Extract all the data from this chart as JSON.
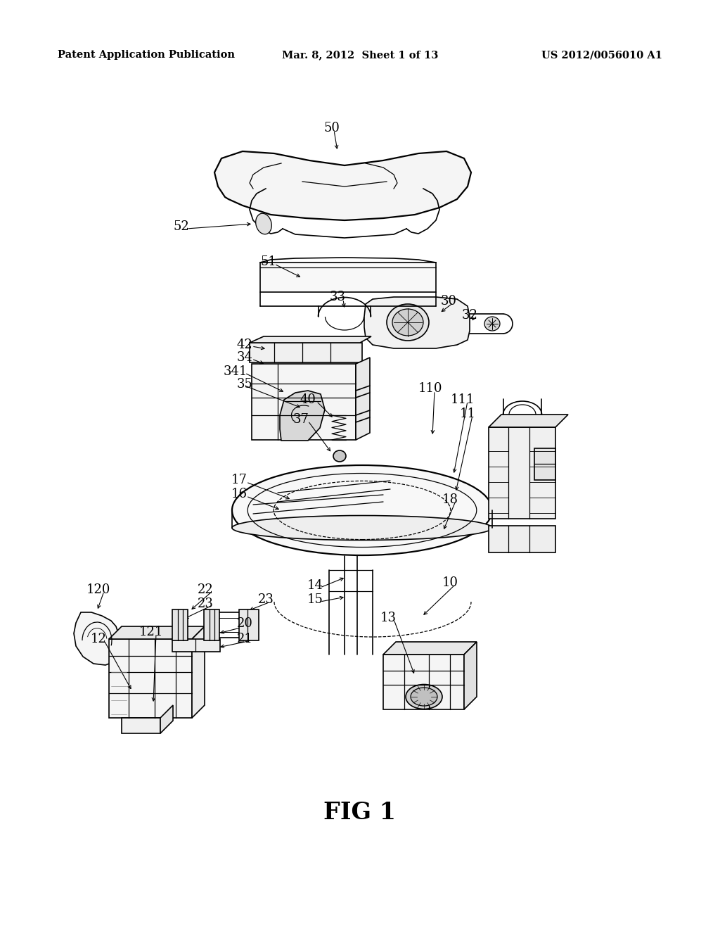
{
  "bg_color": "#ffffff",
  "header_left": "Patent Application Publication",
  "header_center": "Mar. 8, 2012  Sheet 1 of 13",
  "header_right": "US 2012/0056010 A1",
  "caption": "FIG 1",
  "header_fontsize": 10.5,
  "caption_fontsize": 24,
  "fig_width": 10.24,
  "fig_height": 13.2,
  "dpi": 100
}
